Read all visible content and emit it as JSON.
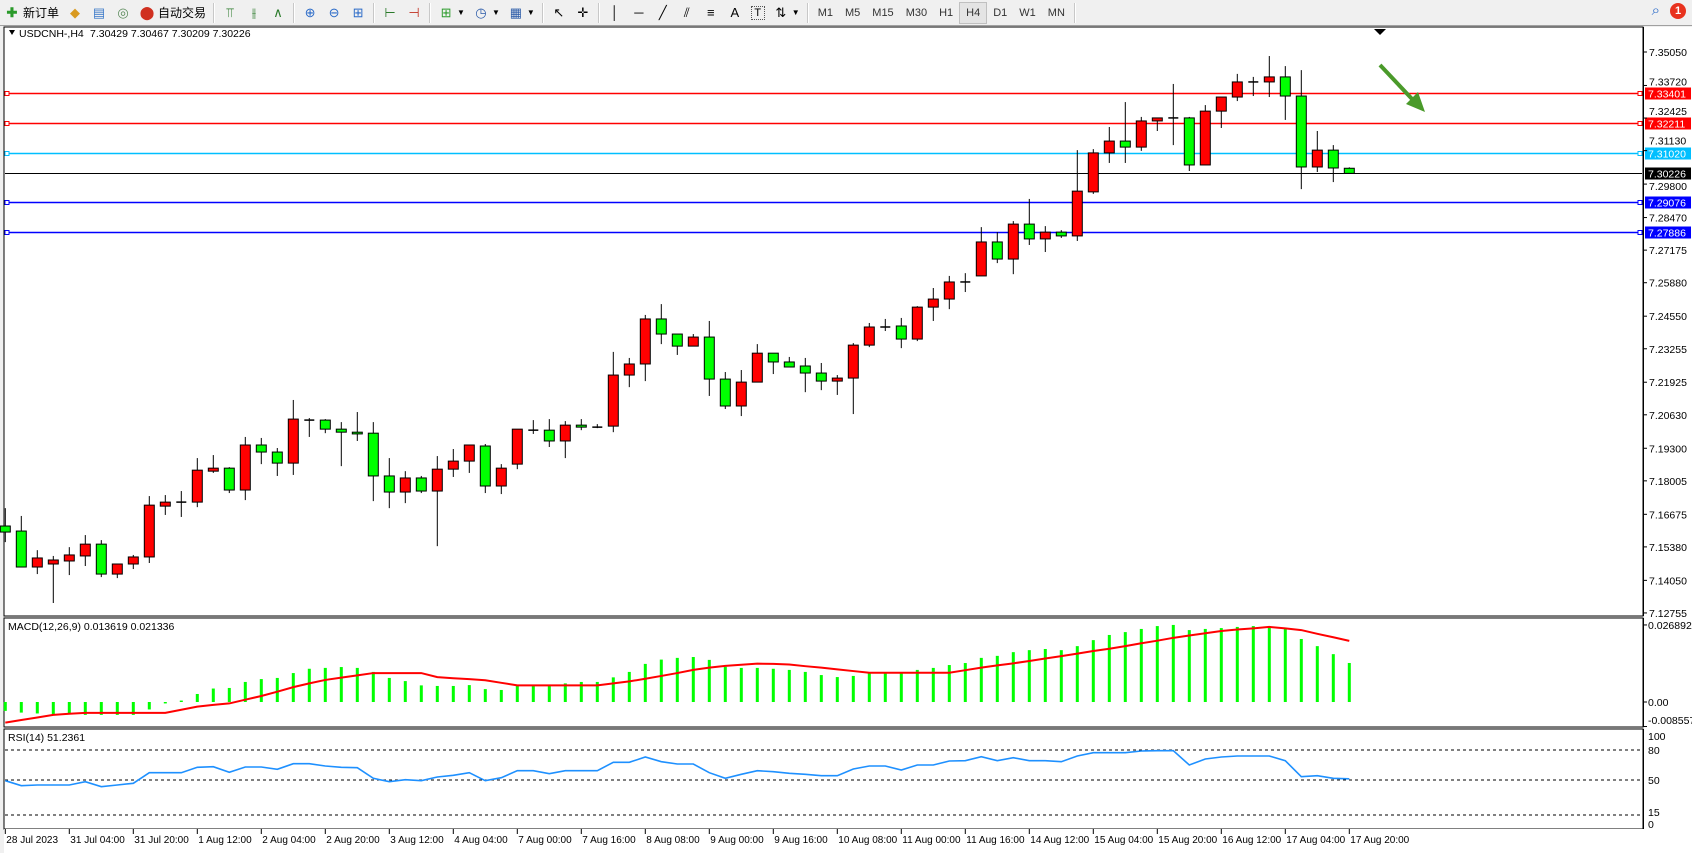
{
  "toolbar": {
    "new_order_label": "新订单",
    "auto_trading_label": "自动交易",
    "timeframes": [
      "M1",
      "M5",
      "M15",
      "M30",
      "H1",
      "H4",
      "D1",
      "W1",
      "MN"
    ],
    "active_timeframe": "H4",
    "notification_count": "1"
  },
  "chart_header": {
    "symbol_tf": "USDCNH-,H4",
    "ohlc_text": "7.30429 7.30467 7.30209 7.30226"
  },
  "colors": {
    "bull_body": "#ff0000",
    "bear_body": "#00ff00",
    "macd_hist": "#00ff00",
    "macd_signal": "#ff0000",
    "rsi_line": "#1e90ff",
    "arrow": "#4a9a2a"
  },
  "chart_data": [
    {
      "type": "candlestick",
      "symbol": "USDCNH-",
      "timeframe": "H4",
      "ylim": [
        7.12755,
        7.3505
      ],
      "y_ticks": [
        "7.35050",
        "7.33720",
        "7.32425",
        "7.31130",
        "7.29800",
        "7.28470",
        "7.27175",
        "7.25880",
        "7.24550",
        "7.23255",
        "7.21925",
        "7.20630",
        "7.19300",
        "7.18005",
        "7.16675",
        "7.15380",
        "7.14050",
        "7.12755"
      ],
      "x_tick_labels": [
        "28 Jul 2023",
        "31 Jul 04:00",
        "31 Jul 20:00",
        "1 Aug 12:00",
        "2 Aug 04:00",
        "2 Aug 20:00",
        "3 Aug 12:00",
        "4 Aug 04:00",
        "7 Aug 00:00",
        "7 Aug 16:00",
        "8 Aug 08:00",
        "9 Aug 00:00",
        "9 Aug 16:00",
        "10 Aug 08:00",
        "11 Aug 00:00",
        "11 Aug 16:00",
        "14 Aug 12:00",
        "15 Aug 04:00",
        "15 Aug 20:00",
        "16 Aug 12:00",
        "17 Aug 04:00",
        "17 Aug 20:00"
      ],
      "ohlc": [
        [
          7.1621,
          7.1692,
          7.1557,
          7.1597
        ],
        [
          7.1601,
          7.1661,
          7.1458,
          7.1458
        ],
        [
          7.1458,
          7.1525,
          7.143,
          7.1494
        ],
        [
          7.147,
          7.1502,
          7.1315,
          7.1486
        ],
        [
          7.1482,
          7.1537,
          7.1426,
          7.1506
        ],
        [
          7.1502,
          7.1585,
          7.1462,
          7.1549
        ],
        [
          7.1549,
          7.1565,
          7.1418,
          7.143
        ],
        [
          7.143,
          7.147,
          7.1414,
          7.147
        ],
        [
          7.147,
          7.1506,
          7.145,
          7.1498
        ],
        [
          7.1498,
          7.174,
          7.1474,
          7.1704
        ],
        [
          7.17,
          7.1744,
          7.1665,
          7.1716
        ],
        [
          7.1716,
          7.176,
          7.1657,
          7.1716
        ],
        [
          7.1716,
          7.1891,
          7.1696,
          7.1843
        ],
        [
          7.1839,
          7.1903,
          7.1832,
          7.1851
        ],
        [
          7.1851,
          7.1855,
          7.1752,
          7.1764
        ],
        [
          7.1764,
          7.1975,
          7.1724,
          7.1943
        ],
        [
          7.1943,
          7.1971,
          7.1867,
          7.1915
        ],
        [
          7.1915,
          7.1931,
          7.182,
          7.1871
        ],
        [
          7.1871,
          7.2122,
          7.1824,
          7.2046
        ],
        [
          7.2042,
          7.205,
          7.1975,
          7.2042
        ],
        [
          7.2042,
          7.2046,
          7.199,
          7.2006
        ],
        [
          7.2006,
          7.2034,
          7.1859,
          7.1994
        ],
        [
          7.1994,
          7.2074,
          7.1959,
          7.1987
        ],
        [
          7.199,
          7.2034,
          7.172,
          7.182
        ],
        [
          7.182,
          7.1891,
          7.1692,
          7.1756
        ],
        [
          7.1756,
          7.1839,
          7.1712,
          7.1812
        ],
        [
          7.1812,
          7.182,
          7.1752,
          7.176
        ],
        [
          7.176,
          7.1899,
          7.1541,
          7.1847
        ],
        [
          7.1847,
          7.1927,
          7.1816,
          7.1879
        ],
        [
          7.1879,
          7.1943,
          7.1832,
          7.1943
        ],
        [
          7.1939,
          7.1947,
          7.1752,
          7.178
        ],
        [
          7.178,
          7.1867,
          7.1748,
          7.1851
        ],
        [
          7.1867,
          7.2006,
          7.1847,
          7.2006
        ],
        [
          7.2002,
          7.2042,
          7.1987,
          7.2002
        ],
        [
          7.2002,
          7.2046,
          7.1935,
          7.1959
        ],
        [
          7.1959,
          7.2038,
          7.1891,
          7.2022
        ],
        [
          7.2022,
          7.2046,
          7.2002,
          7.2014
        ],
        [
          7.2014,
          7.2026,
          7.201,
          7.2014
        ],
        [
          7.2018,
          7.2313,
          7.1994,
          7.2221
        ],
        [
          7.2221,
          7.2289,
          7.2173,
          7.2265
        ],
        [
          7.2265,
          7.246,
          7.2197,
          7.2444
        ],
        [
          7.2444,
          7.2503,
          7.2344,
          7.2384
        ],
        [
          7.2384,
          7.2384,
          7.2301,
          7.2336
        ],
        [
          7.2336,
          7.2384,
          7.2336,
          7.2372
        ],
        [
          7.2372,
          7.2436,
          7.2138,
          7.2205
        ],
        [
          7.2205,
          7.2233,
          7.2086,
          7.2098
        ],
        [
          7.2098,
          7.2241,
          7.2058,
          7.2193
        ],
        [
          7.2193,
          7.2344,
          7.2193,
          7.2308
        ],
        [
          7.2308,
          7.2308,
          7.2225,
          7.2273
        ],
        [
          7.2273,
          7.2293,
          7.2253,
          7.2253
        ],
        [
          7.2257,
          7.2289,
          7.2153,
          7.2229
        ],
        [
          7.2229,
          7.2269,
          7.2161,
          7.2197
        ],
        [
          7.2197,
          7.2221,
          7.2142,
          7.2209
        ],
        [
          7.2209,
          7.2348,
          7.2066,
          7.234
        ],
        [
          7.234,
          7.2428,
          7.2332,
          7.2412
        ],
        [
          7.2412,
          7.2444,
          7.2396,
          7.2412
        ],
        [
          7.2416,
          7.2448,
          7.2328,
          7.2364
        ],
        [
          7.2364,
          7.2495,
          7.2356,
          7.2491
        ],
        [
          7.2491,
          7.2567,
          7.2436,
          7.2523
        ],
        [
          7.2523,
          7.2615,
          7.2483,
          7.2591
        ],
        [
          7.2591,
          7.2626,
          7.2551,
          7.2591
        ],
        [
          7.2615,
          7.2809,
          7.2615,
          7.275
        ],
        [
          7.275,
          7.2789,
          7.2666,
          7.2682
        ],
        [
          7.2682,
          7.2833,
          7.2622,
          7.2821
        ],
        [
          7.2821,
          7.2921,
          7.2738,
          7.2762
        ],
        [
          7.2762,
          7.2813,
          7.271,
          7.2789
        ],
        [
          7.2789,
          7.2797,
          7.2766,
          7.2774
        ],
        [
          7.2774,
          7.3115,
          7.2754,
          7.2952
        ],
        [
          7.2949,
          7.3119,
          7.2941,
          7.3104
        ],
        [
          7.3104,
          7.3207,
          7.3064,
          7.3151
        ],
        [
          7.3151,
          7.3306,
          7.3064,
          7.3127
        ],
        [
          7.3127,
          7.3247,
          7.3112,
          7.3231
        ],
        [
          7.3231,
          7.3243,
          7.3191,
          7.3243
        ],
        [
          7.3243,
          7.3378,
          7.3135,
          7.3243
        ],
        [
          7.3243,
          7.3247,
          7.3032,
          7.3056
        ],
        [
          7.3056,
          7.3294,
          7.3056,
          7.327
        ],
        [
          7.327,
          7.3326,
          7.3203,
          7.3326
        ],
        [
          7.3326,
          7.3418,
          7.331,
          7.3386
        ],
        [
          7.3386,
          7.3406,
          7.333,
          7.3386
        ],
        [
          7.3386,
          7.3489,
          7.3326,
          7.3406
        ],
        [
          7.3406,
          7.3449,
          7.3235,
          7.333
        ],
        [
          7.333,
          7.3433,
          7.296,
          7.3048
        ],
        [
          7.3048,
          7.3191,
          7.3028,
          7.3115
        ],
        [
          7.3115,
          7.3135,
          7.2988,
          7.3044
        ],
        [
          7.30429,
          7.30467,
          7.30209,
          7.30226
        ]
      ],
      "horizontal_lines": [
        {
          "price": "7.33401",
          "color": "#ff0000"
        },
        {
          "price": "7.32211",
          "color": "#ff0000"
        },
        {
          "price": "7.31020",
          "color": "#00bfff"
        },
        {
          "price": "7.29076",
          "color": "#0000ff"
        },
        {
          "price": "7.27886",
          "color": "#0000ff"
        }
      ],
      "current_price": "7.30226",
      "annotation": "green-down-arrow"
    },
    {
      "type": "bar+line",
      "title": "MACD(12,26,9) 0.013619 0.021336",
      "ylim": [
        -0.008557,
        0.026892
      ],
      "y_ticks": [
        "0.026892",
        "0.00",
        "-0.008557"
      ],
      "histogram": [
        -0.0031,
        -0.0037,
        -0.004,
        -0.0043,
        -0.0043,
        -0.0045,
        -0.0045,
        -0.0045,
        -0.0045,
        -0.0026,
        -0.0005,
        0.0005,
        0.0028,
        0.0047,
        0.0049,
        0.007,
        0.008,
        0.0084,
        0.0101,
        0.0116,
        0.0119,
        0.0122,
        0.0119,
        0.0105,
        0.0084,
        0.0073,
        0.0058,
        0.0056,
        0.0056,
        0.0059,
        0.0045,
        0.0042,
        0.0056,
        0.0056,
        0.0056,
        0.0065,
        0.007,
        0.007,
        0.0086,
        0.0105,
        0.0133,
        0.0148,
        0.0154,
        0.0157,
        0.0147,
        0.0123,
        0.0119,
        0.0119,
        0.0116,
        0.0112,
        0.0105,
        0.0094,
        0.0087,
        0.0091,
        0.01,
        0.01,
        0.01,
        0.0112,
        0.0119,
        0.0129,
        0.0136,
        0.0154,
        0.0161,
        0.0174,
        0.0181,
        0.0185,
        0.0181,
        0.0195,
        0.0216,
        0.0234,
        0.0244,
        0.0255,
        0.0265,
        0.0269,
        0.0251,
        0.0255,
        0.0258,
        0.0262,
        0.0265,
        0.0265,
        0.0255,
        0.022,
        0.0195,
        0.0167,
        0.013619
      ],
      "signal": [
        -0.0072,
        -0.0063,
        -0.0054,
        -0.0045,
        -0.0041,
        -0.0038,
        -0.0038,
        -0.0038,
        -0.0038,
        -0.0038,
        -0.0038,
        -0.0027,
        -0.0016,
        -0.001,
        -0.0005,
        0.0008,
        0.0021,
        0.0036,
        0.0052,
        0.0065,
        0.0077,
        0.0085,
        0.0093,
        0.0101,
        0.0101,
        0.0101,
        0.0101,
        0.0087,
        0.0083,
        0.008,
        0.0076,
        0.0067,
        0.0058,
        0.0058,
        0.0058,
        0.0058,
        0.0058,
        0.0058,
        0.0065,
        0.0072,
        0.0081,
        0.0091,
        0.0101,
        0.0112,
        0.012,
        0.0126,
        0.013,
        0.0134,
        0.0133,
        0.0131,
        0.0125,
        0.012,
        0.0114,
        0.0108,
        0.0102,
        0.0102,
        0.0102,
        0.0102,
        0.0102,
        0.0102,
        0.0111,
        0.012,
        0.0128,
        0.0135,
        0.0143,
        0.0152,
        0.016,
        0.0169,
        0.0178,
        0.0186,
        0.0195,
        0.0205,
        0.0214,
        0.0224,
        0.0232,
        0.024,
        0.0248,
        0.0253,
        0.0257,
        0.0262,
        0.0257,
        0.0251,
        0.0238,
        0.0226,
        0.021336
      ]
    },
    {
      "type": "line",
      "title": "RSI(14) 51.2361",
      "ylim": [
        0,
        100
      ],
      "y_ticks": [
        "100",
        "80",
        "50",
        "15",
        "0"
      ],
      "levels": [
        80,
        50,
        15
      ],
      "values": [
        49.3,
        44.3,
        45,
        45,
        45,
        48.3,
        43.3,
        45,
        46.7,
        57.3,
        57.3,
        57.3,
        62.7,
        63.3,
        57.7,
        63,
        63,
        60.7,
        66.3,
        66.3,
        64,
        62.7,
        62.3,
        51.7,
        48.3,
        50.3,
        49.3,
        53,
        54.7,
        57.3,
        49.3,
        52.3,
        59.3,
        59.3,
        56.3,
        59.3,
        59.3,
        59.3,
        67.7,
        67.7,
        73,
        68.3,
        66,
        66,
        57.3,
        51.7,
        55.7,
        59.3,
        58.3,
        56.7,
        55.7,
        54.3,
        54.3,
        61,
        64,
        64,
        60,
        65,
        65,
        69,
        69.3,
        73.3,
        69.3,
        72.3,
        69.3,
        69.3,
        68.3,
        74,
        77.3,
        77.3,
        77.3,
        79,
        79.3,
        79.3,
        65,
        71,
        73,
        74,
        74,
        74,
        69.3,
        53.3,
        54.3,
        51.7,
        51.2361
      ]
    }
  ]
}
